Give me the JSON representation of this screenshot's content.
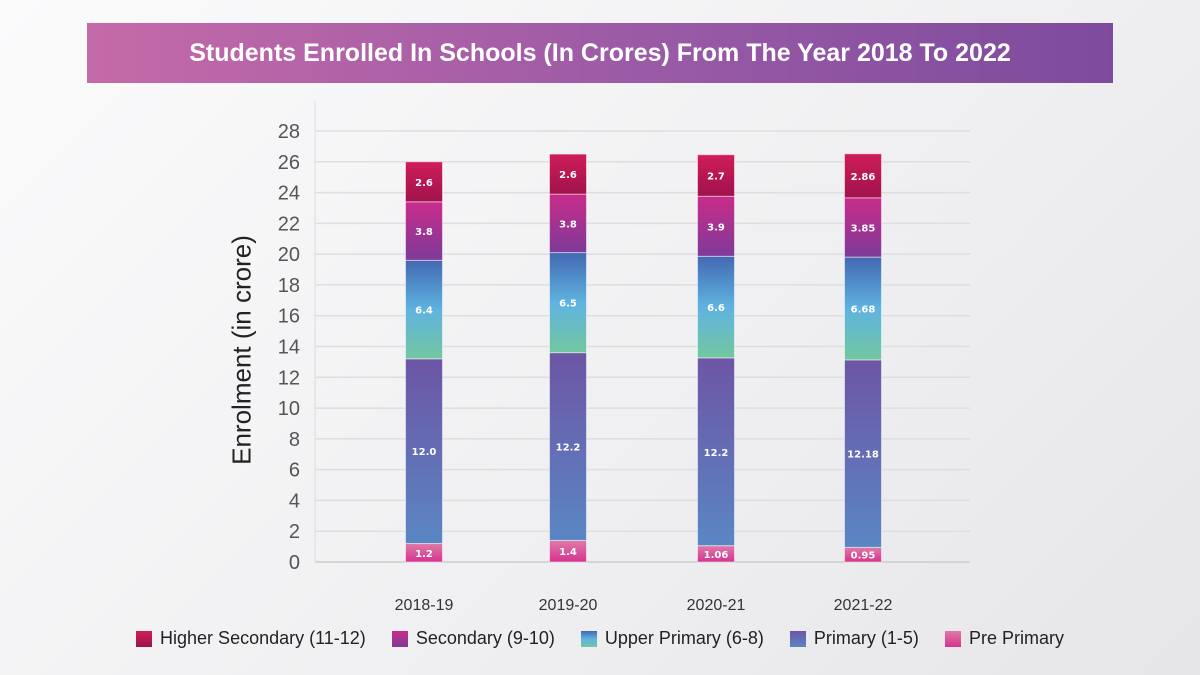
{
  "chart_data": {
    "type": "bar",
    "stacked": true,
    "title": "Students Enrolled In Schools (In Crores) From The Year 2018 To 2022",
    "xlabel": "",
    "ylabel": "Enrolment (in crore)",
    "ylim": [
      0,
      28
    ],
    "yticks": [
      0,
      2,
      4,
      6,
      8,
      10,
      12,
      14,
      16,
      18,
      20,
      22,
      24,
      26,
      28
    ],
    "grid": true,
    "legend_position": "bottom",
    "categories": [
      "2018-19",
      "2019-20",
      "2020-21",
      "2021-22"
    ],
    "series": [
      {
        "name": "Pre Primary",
        "values": [
          1.2,
          1.4,
          1.06,
          0.95
        ],
        "labels": [
          "1.2",
          "1.4",
          "1.06",
          "0.95"
        ],
        "colors": [
          "#e07aa8",
          "#d6338f"
        ]
      },
      {
        "name": "Primary (1-5)",
        "values": [
          12.0,
          12.2,
          12.2,
          12.18
        ],
        "labels": [
          "12.0",
          "12.2",
          "12.2",
          "12.18"
        ],
        "colors": [
          "#6d55a5",
          "#5a86c4"
        ]
      },
      {
        "name": "Upper Primary (6-8)",
        "values": [
          6.4,
          6.5,
          6.6,
          6.68
        ],
        "labels": [
          "6.4",
          "6.5",
          "6.6",
          "6.68"
        ],
        "colors": [
          "#4368b3",
          "#5fb3e0",
          "#72c7a0"
        ]
      },
      {
        "name": "Secondary (9-10)",
        "values": [
          3.8,
          3.8,
          3.9,
          3.85
        ],
        "labels": [
          "3.8",
          "3.8",
          "3.9",
          "3.85"
        ],
        "colors": [
          "#c92c8a",
          "#7e3a98"
        ]
      },
      {
        "name": "Higher Secondary (11-12)",
        "values": [
          2.6,
          2.6,
          2.7,
          2.86
        ],
        "labels": [
          "2.6",
          "2.6",
          "2.7",
          "2.86"
        ],
        "colors": [
          "#cf1d5a",
          "#a0124c"
        ]
      }
    ],
    "legend_order": [
      "Higher Secondary (11-12)",
      "Secondary (9-10)",
      "Upper Primary (6-8)",
      "Primary (1-5)",
      "Pre Primary"
    ]
  }
}
